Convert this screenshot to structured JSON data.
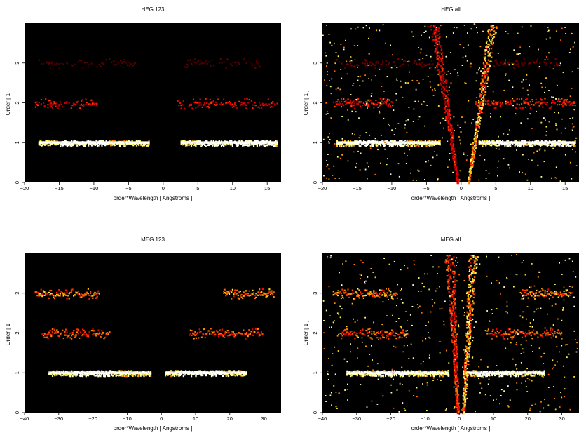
{
  "figure": {
    "background": "#ffffff",
    "plot_background": "#000000"
  },
  "colors": {
    "hot_low": "#7a1500",
    "hot_mid": "#e0600a",
    "hot_high": "#ffd98a",
    "hot_max": "#ffffff"
  },
  "chart_data": [
    {
      "type": "heatmap",
      "title": "HEG 123",
      "xlabel": "order*Wavelength [ Angstroms ]",
      "ylabel": "Order [ 1 ]",
      "xlim": [
        -20,
        17
      ],
      "ylim": [
        0,
        4
      ],
      "xticks": [
        -20,
        -15,
        -10,
        -5,
        0,
        5,
        10,
        15
      ],
      "yticks": [
        0,
        1,
        2,
        3
      ],
      "colormap": "hot",
      "bands": [
        {
          "order": 1,
          "segments": [
            [
              -18,
              -2
            ],
            [
              2.5,
              16.5
            ]
          ],
          "intensity": 0.95,
          "peak": [
            [
              -15,
              -8
            ],
            [
              5,
              16
            ]
          ]
        },
        {
          "order": 2,
          "segments": [
            [
              -18.5,
              -9.5
            ],
            [
              2,
              16.5
            ]
          ],
          "intensity": 0.45
        },
        {
          "order": 3,
          "segments": [
            [
              -18,
              -4
            ],
            [
              3,
              14
            ]
          ],
          "intensity": 0.15
        }
      ],
      "cross_streaks": []
    },
    {
      "type": "heatmap",
      "title": "HEG all",
      "xlabel": "order*Wavelength [ Angstroms ]",
      "ylabel": "Order [ 1 ]",
      "xlim": [
        -20,
        17
      ],
      "ylim": [
        0,
        4
      ],
      "xticks": [
        -20,
        -15,
        -10,
        -5,
        0,
        5,
        10,
        15
      ],
      "yticks": [
        0,
        1,
        2,
        3
      ],
      "colormap": "hot",
      "bands": [
        {
          "order": 1,
          "segments": [
            [
              -18,
              -3
            ],
            [
              2.5,
              16.5
            ]
          ],
          "intensity": 0.95,
          "peak": [
            [
              -15,
              -8
            ],
            [
              5,
              16
            ]
          ]
        },
        {
          "order": 2,
          "segments": [
            [
              -18.5,
              -9.5
            ],
            [
              2,
              16.5
            ]
          ],
          "intensity": 0.5
        },
        {
          "order": 3,
          "segments": [
            [
              -18,
              -4
            ],
            [
              3,
              14
            ]
          ],
          "intensity": 0.2
        }
      ],
      "cross_streaks": [
        {
          "x0": -0.5,
          "x_top": -4,
          "intensity": 0.5
        },
        {
          "x0": 1.0,
          "x_top": 4.5,
          "intensity": 0.85
        }
      ],
      "background_noise": 0.55
    },
    {
      "type": "heatmap",
      "title": "MEG 123",
      "xlabel": "order*Wavelength [ Angstroms ]",
      "ylabel": "Order [ 1 ]",
      "xlim": [
        -40,
        35
      ],
      "ylim": [
        0,
        4
      ],
      "xticks": [
        -40,
        -30,
        -20,
        -10,
        0,
        10,
        20,
        30
      ],
      "yticks": [
        0,
        1,
        2,
        3
      ],
      "colormap": "hot",
      "bands": [
        {
          "order": 1,
          "segments": [
            [
              -33,
              -3
            ],
            [
              1,
              25
            ]
          ],
          "intensity": 0.95,
          "peak": [
            [
              -25,
              -15
            ],
            [
              5,
              18
            ]
          ]
        },
        {
          "order": 2,
          "segments": [
            [
              -35,
              -15
            ],
            [
              8,
              30
            ]
          ],
          "intensity": 0.6
        },
        {
          "order": 3,
          "segments": [
            [
              -37,
              -18
            ],
            [
              18,
              33
            ]
          ],
          "intensity": 0.7
        }
      ],
      "cross_streaks": []
    },
    {
      "type": "heatmap",
      "title": "MEG all",
      "xlabel": "order*Wavelength [ Angstroms ]",
      "ylabel": "Order [ 1 ]",
      "xlim": [
        -40,
        35
      ],
      "ylim": [
        0,
        4
      ],
      "xticks": [
        -40,
        -30,
        -20,
        -10,
        0,
        10,
        20,
        30
      ],
      "yticks": [
        0,
        1,
        2,
        3
      ],
      "colormap": "hot",
      "bands": [
        {
          "order": 1,
          "segments": [
            [
              -33,
              -3
            ],
            [
              1,
              25
            ]
          ],
          "intensity": 0.95,
          "peak": [
            [
              -25,
              -15
            ],
            [
              5,
              18
            ]
          ]
        },
        {
          "order": 2,
          "segments": [
            [
              -35,
              -15
            ],
            [
              8,
              30
            ]
          ],
          "intensity": 0.6
        },
        {
          "order": 3,
          "segments": [
            [
              -37,
              -18
            ],
            [
              18,
              33
            ]
          ],
          "intensity": 0.7
        }
      ],
      "cross_streaks": [
        {
          "x0": -0.5,
          "x_top": -3,
          "intensity": 0.6
        },
        {
          "x0": 1.0,
          "x_top": 4,
          "intensity": 0.9
        }
      ],
      "background_noise": 0.55
    }
  ]
}
